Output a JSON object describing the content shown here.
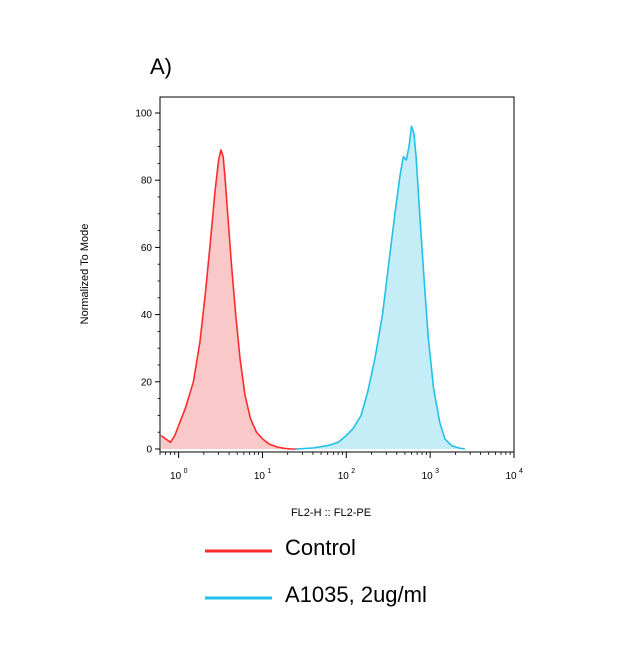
{
  "panel_label": "A)",
  "chart_data": {
    "type": "area",
    "title": "",
    "xlabel": "FL2-H :: FL2-PE",
    "ylabel": "Normalized To Mode",
    "xscale": "log",
    "xlim": [
      0.6,
      10000
    ],
    "ylim": [
      0,
      100
    ],
    "yticks": [
      0,
      20,
      40,
      60,
      80,
      100
    ],
    "ytick_labels": [
      "0",
      "20",
      "40",
      "60",
      "80",
      "100"
    ],
    "xticks": [
      1,
      10,
      100,
      1000,
      10000
    ],
    "xtick_labels": [
      {
        "base": "10",
        "exp": "0"
      },
      {
        "base": "10",
        "exp": "1"
      },
      {
        "base": "10",
        "exp": "2"
      },
      {
        "base": "10",
        "exp": "3"
      },
      {
        "base": "10",
        "exp": "4"
      }
    ],
    "legend_position": "bottom",
    "series": [
      {
        "name": "Control",
        "color": "#ff2a2a",
        "fill": "#f9c8c8",
        "x": [
          0.62,
          0.7,
          0.8,
          0.9,
          1.0,
          1.2,
          1.5,
          1.8,
          2.1,
          2.4,
          2.7,
          3.0,
          3.2,
          3.4,
          3.6,
          3.9,
          4.3,
          4.8,
          5.4,
          6.2,
          7.2,
          8.5,
          10,
          12,
          15,
          18,
          22,
          26
        ],
        "y": [
          4,
          3,
          2,
          4,
          7,
          12,
          20,
          32,
          47,
          62,
          76,
          86,
          89,
          87,
          80,
          68,
          54,
          40,
          27,
          16,
          9,
          5,
          3,
          1.5,
          0.6,
          0.2,
          0,
          0
        ]
      },
      {
        "name": "A1035, 2ug/ml",
        "color": "#22c0ea",
        "fill": "#c4edf8",
        "x": [
          25,
          40,
          60,
          80,
          100,
          120,
          150,
          180,
          220,
          270,
          320,
          380,
          440,
          480,
          520,
          560,
          600,
          640,
          680,
          750,
          850,
          950,
          1100,
          1300,
          1500,
          1800,
          2200,
          2600
        ],
        "y": [
          0,
          0.3,
          1,
          2,
          4,
          6,
          10,
          17,
          27,
          40,
          55,
          70,
          82,
          87,
          86,
          90,
          96,
          94,
          87,
          70,
          50,
          33,
          18,
          8,
          3,
          1,
          0.3,
          0
        ]
      }
    ]
  }
}
